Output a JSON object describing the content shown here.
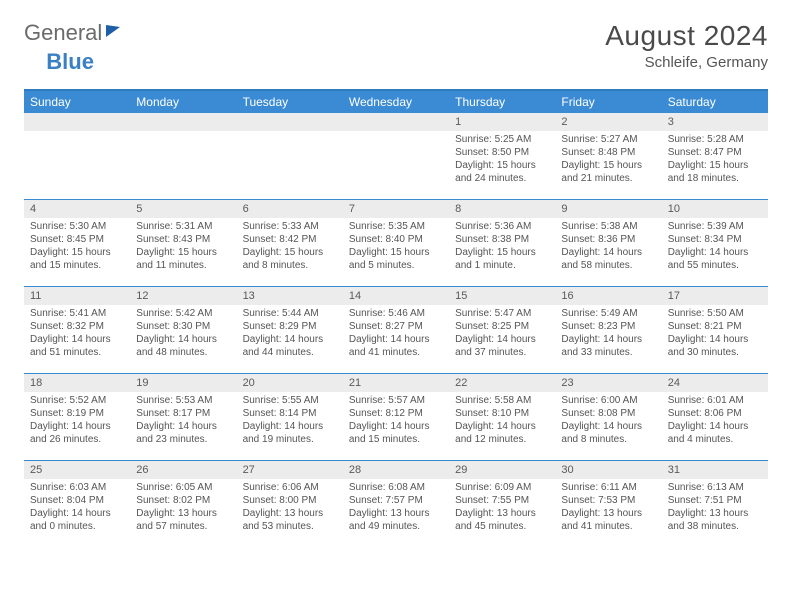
{
  "logo": {
    "part1": "General",
    "part2": "Blue"
  },
  "title": "August 2024",
  "location": "Schleife, Germany",
  "colors": {
    "header_bar": "#3b8bd4",
    "week_border": "#3b8bd4",
    "daynum_bg": "#ececec",
    "text": "#555555",
    "title_text": "#4a4a4a"
  },
  "weekdays": [
    "Sunday",
    "Monday",
    "Tuesday",
    "Wednesday",
    "Thursday",
    "Friday",
    "Saturday"
  ],
  "weeks": [
    [
      null,
      null,
      null,
      null,
      {
        "n": "1",
        "sr": "Sunrise: 5:25 AM",
        "ss": "Sunset: 8:50 PM",
        "dl": "Daylight: 15 hours and 24 minutes."
      },
      {
        "n": "2",
        "sr": "Sunrise: 5:27 AM",
        "ss": "Sunset: 8:48 PM",
        "dl": "Daylight: 15 hours and 21 minutes."
      },
      {
        "n": "3",
        "sr": "Sunrise: 5:28 AM",
        "ss": "Sunset: 8:47 PM",
        "dl": "Daylight: 15 hours and 18 minutes."
      }
    ],
    [
      {
        "n": "4",
        "sr": "Sunrise: 5:30 AM",
        "ss": "Sunset: 8:45 PM",
        "dl": "Daylight: 15 hours and 15 minutes."
      },
      {
        "n": "5",
        "sr": "Sunrise: 5:31 AM",
        "ss": "Sunset: 8:43 PM",
        "dl": "Daylight: 15 hours and 11 minutes."
      },
      {
        "n": "6",
        "sr": "Sunrise: 5:33 AM",
        "ss": "Sunset: 8:42 PM",
        "dl": "Daylight: 15 hours and 8 minutes."
      },
      {
        "n": "7",
        "sr": "Sunrise: 5:35 AM",
        "ss": "Sunset: 8:40 PM",
        "dl": "Daylight: 15 hours and 5 minutes."
      },
      {
        "n": "8",
        "sr": "Sunrise: 5:36 AM",
        "ss": "Sunset: 8:38 PM",
        "dl": "Daylight: 15 hours and 1 minute."
      },
      {
        "n": "9",
        "sr": "Sunrise: 5:38 AM",
        "ss": "Sunset: 8:36 PM",
        "dl": "Daylight: 14 hours and 58 minutes."
      },
      {
        "n": "10",
        "sr": "Sunrise: 5:39 AM",
        "ss": "Sunset: 8:34 PM",
        "dl": "Daylight: 14 hours and 55 minutes."
      }
    ],
    [
      {
        "n": "11",
        "sr": "Sunrise: 5:41 AM",
        "ss": "Sunset: 8:32 PM",
        "dl": "Daylight: 14 hours and 51 minutes."
      },
      {
        "n": "12",
        "sr": "Sunrise: 5:42 AM",
        "ss": "Sunset: 8:30 PM",
        "dl": "Daylight: 14 hours and 48 minutes."
      },
      {
        "n": "13",
        "sr": "Sunrise: 5:44 AM",
        "ss": "Sunset: 8:29 PM",
        "dl": "Daylight: 14 hours and 44 minutes."
      },
      {
        "n": "14",
        "sr": "Sunrise: 5:46 AM",
        "ss": "Sunset: 8:27 PM",
        "dl": "Daylight: 14 hours and 41 minutes."
      },
      {
        "n": "15",
        "sr": "Sunrise: 5:47 AM",
        "ss": "Sunset: 8:25 PM",
        "dl": "Daylight: 14 hours and 37 minutes."
      },
      {
        "n": "16",
        "sr": "Sunrise: 5:49 AM",
        "ss": "Sunset: 8:23 PM",
        "dl": "Daylight: 14 hours and 33 minutes."
      },
      {
        "n": "17",
        "sr": "Sunrise: 5:50 AM",
        "ss": "Sunset: 8:21 PM",
        "dl": "Daylight: 14 hours and 30 minutes."
      }
    ],
    [
      {
        "n": "18",
        "sr": "Sunrise: 5:52 AM",
        "ss": "Sunset: 8:19 PM",
        "dl": "Daylight: 14 hours and 26 minutes."
      },
      {
        "n": "19",
        "sr": "Sunrise: 5:53 AM",
        "ss": "Sunset: 8:17 PM",
        "dl": "Daylight: 14 hours and 23 minutes."
      },
      {
        "n": "20",
        "sr": "Sunrise: 5:55 AM",
        "ss": "Sunset: 8:14 PM",
        "dl": "Daylight: 14 hours and 19 minutes."
      },
      {
        "n": "21",
        "sr": "Sunrise: 5:57 AM",
        "ss": "Sunset: 8:12 PM",
        "dl": "Daylight: 14 hours and 15 minutes."
      },
      {
        "n": "22",
        "sr": "Sunrise: 5:58 AM",
        "ss": "Sunset: 8:10 PM",
        "dl": "Daylight: 14 hours and 12 minutes."
      },
      {
        "n": "23",
        "sr": "Sunrise: 6:00 AM",
        "ss": "Sunset: 8:08 PM",
        "dl": "Daylight: 14 hours and 8 minutes."
      },
      {
        "n": "24",
        "sr": "Sunrise: 6:01 AM",
        "ss": "Sunset: 8:06 PM",
        "dl": "Daylight: 14 hours and 4 minutes."
      }
    ],
    [
      {
        "n": "25",
        "sr": "Sunrise: 6:03 AM",
        "ss": "Sunset: 8:04 PM",
        "dl": "Daylight: 14 hours and 0 minutes."
      },
      {
        "n": "26",
        "sr": "Sunrise: 6:05 AM",
        "ss": "Sunset: 8:02 PM",
        "dl": "Daylight: 13 hours and 57 minutes."
      },
      {
        "n": "27",
        "sr": "Sunrise: 6:06 AM",
        "ss": "Sunset: 8:00 PM",
        "dl": "Daylight: 13 hours and 53 minutes."
      },
      {
        "n": "28",
        "sr": "Sunrise: 6:08 AM",
        "ss": "Sunset: 7:57 PM",
        "dl": "Daylight: 13 hours and 49 minutes."
      },
      {
        "n": "29",
        "sr": "Sunrise: 6:09 AM",
        "ss": "Sunset: 7:55 PM",
        "dl": "Daylight: 13 hours and 45 minutes."
      },
      {
        "n": "30",
        "sr": "Sunrise: 6:11 AM",
        "ss": "Sunset: 7:53 PM",
        "dl": "Daylight: 13 hours and 41 minutes."
      },
      {
        "n": "31",
        "sr": "Sunrise: 6:13 AM",
        "ss": "Sunset: 7:51 PM",
        "dl": "Daylight: 13 hours and 38 minutes."
      }
    ]
  ]
}
